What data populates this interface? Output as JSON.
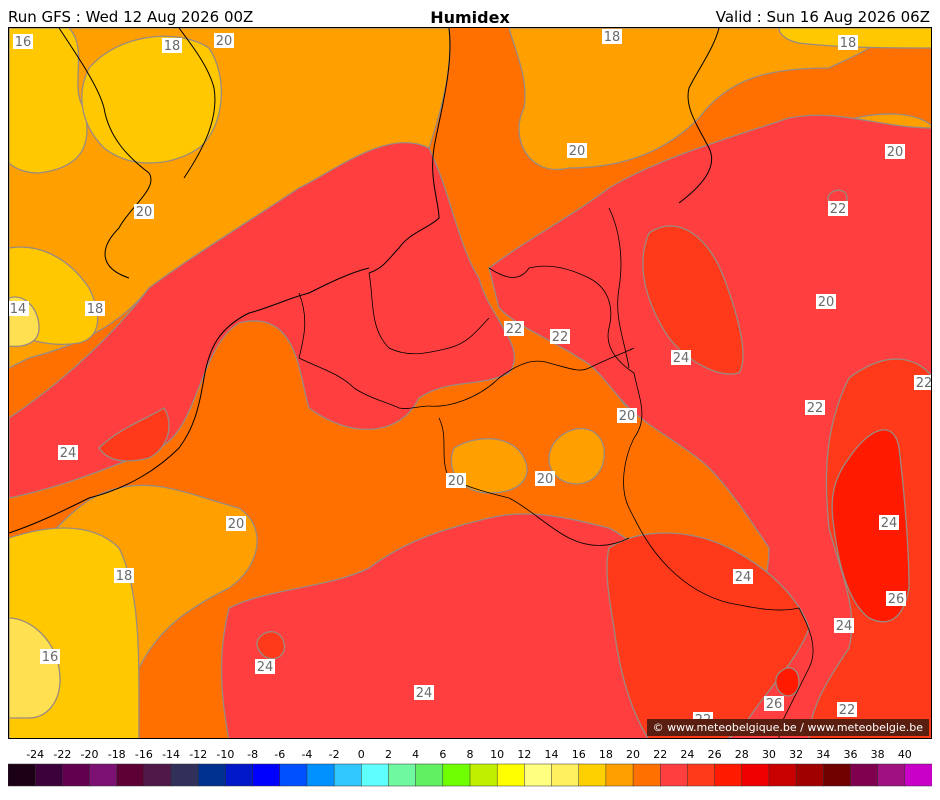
{
  "header": {
    "run": "Run GFS : Wed 12 Aug 2026 00Z",
    "title": "Humidex",
    "valid": "Valid : Sun 16 Aug 2026 06Z"
  },
  "copyright": "© www.meteobelgique.be / www.meteobelgie.be",
  "map": {
    "contour_labels": [
      "16",
      "18",
      "20",
      "18",
      "20",
      "14",
      "18",
      "20",
      "22",
      "22",
      "24",
      "24",
      "20",
      "20",
      "20",
      "18",
      "16",
      "24",
      "24",
      "22",
      "20",
      "24",
      "26",
      "24",
      "22",
      "24",
      "26",
      "22",
      "22",
      "20",
      "22",
      "18",
      "20",
      "20",
      "22",
      "24"
    ]
  },
  "legend": {
    "ticks": [
      "-24",
      "-22",
      "-20",
      "-18",
      "-16",
      "-14",
      "-12",
      "-10",
      "-8",
      "-6",
      "-4",
      "-2",
      "0",
      "2",
      "4",
      "6",
      "8",
      "10",
      "12",
      "14",
      "16",
      "18",
      "20",
      "22",
      "24",
      "26",
      "28",
      "30",
      "32",
      "34",
      "36",
      "38",
      "40"
    ],
    "colors": [
      "#1c0016",
      "#3c003a",
      "#62004f",
      "#7c1073",
      "#5c0036",
      "#501848",
      "#30305a",
      "#003090",
      "#0018c8",
      "#0000ff",
      "#0050ff",
      "#0090ff",
      "#30c8ff",
      "#60ffff",
      "#70f8a0",
      "#60f060",
      "#70ff00",
      "#c0f000",
      "#ffff00",
      "#ffff80",
      "#fff060",
      "#ffd000",
      "#ffa000",
      "#ff7000",
      "#ff3f3f",
      "#ff3a1a",
      "#ff1a00",
      "#f00000",
      "#c80000",
      "#a00000",
      "#700000",
      "#800050",
      "#a01080",
      "#c800c8"
    ]
  }
}
